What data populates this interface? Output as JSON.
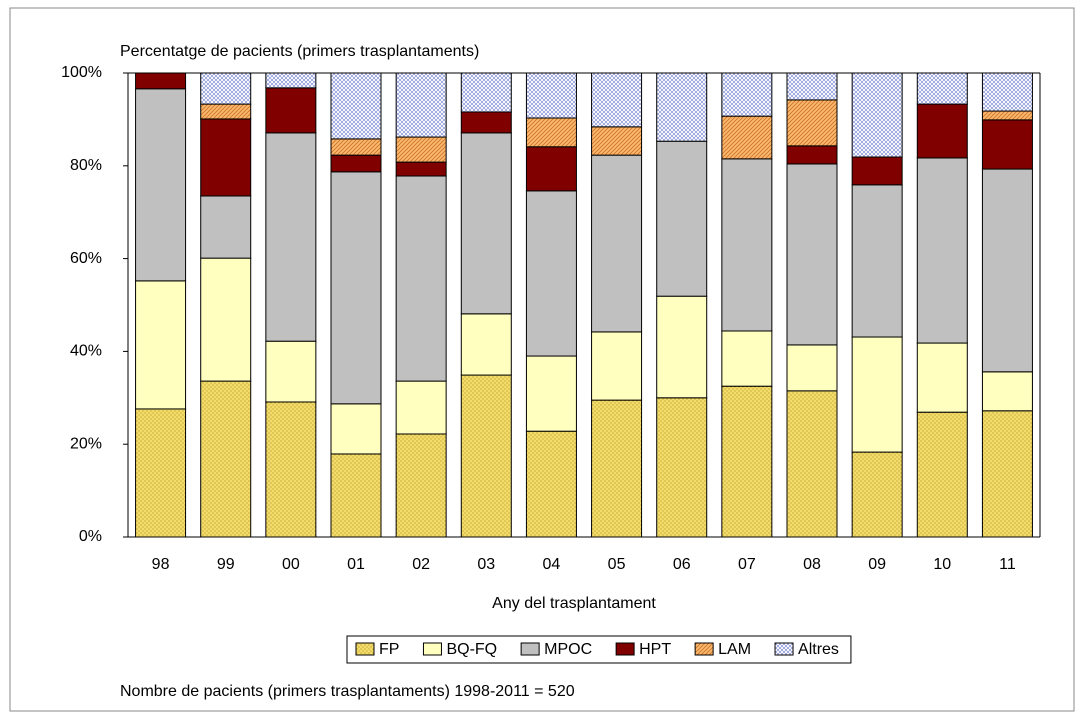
{
  "chart_data": {
    "type": "stacked_bar",
    "title": "Percentatge de pacients (primers trasplantaments)",
    "x_label": "Any del trasplantament",
    "note": "Nombre de pacients (primers trasplantaments) 1998-2011 = 520",
    "categories": [
      "98",
      "99",
      "00",
      "01",
      "02",
      "03",
      "04",
      "05",
      "06",
      "07",
      "08",
      "09",
      "10",
      "11"
    ],
    "series": [
      {
        "name": "FP",
        "color": "#f2dc6a",
        "values": [
          27.6,
          33.6,
          29.1,
          17.9,
          22.2,
          34.9,
          22.8,
          29.5,
          30.0,
          32.5,
          31.5,
          18.3,
          26.9,
          27.2
        ]
      },
      {
        "name": "BQ-FQ",
        "color": "#ffffc0",
        "values": [
          27.6,
          26.5,
          13.1,
          10.8,
          11.4,
          13.2,
          16.2,
          14.7,
          21.9,
          11.9,
          9.9,
          24.8,
          14.9,
          8.4
        ]
      },
      {
        "name": "MPOC",
        "color": "#c0c0c0",
        "values": [
          41.4,
          13.4,
          44.9,
          50.0,
          44.2,
          39.0,
          35.6,
          38.1,
          33.4,
          37.1,
          39.0,
          32.8,
          39.9,
          43.7
        ]
      },
      {
        "name": "HPT",
        "color": "#800000",
        "values": [
          3.4,
          16.6,
          9.7,
          3.6,
          3.0,
          4.5,
          9.5,
          0,
          0,
          0,
          3.9,
          6.0,
          11.6,
          10.6
        ]
      },
      {
        "name": "LAM",
        "color": "#f8b870",
        "values": [
          0,
          3.2,
          0,
          3.5,
          5.4,
          0,
          6.2,
          6.1,
          0,
          9.2,
          9.9,
          0,
          0,
          1.9
        ]
      },
      {
        "name": "Altres",
        "color": "#ffffff",
        "values": [
          0,
          6.7,
          3.2,
          14.2,
          13.8,
          8.4,
          9.7,
          11.6,
          14.7,
          9.3,
          5.8,
          18.1,
          6.7,
          8.2
        ]
      }
    ],
    "ylim": [
      0,
      100
    ],
    "yticks": [
      {
        "value": 0,
        "label": "0%"
      },
      {
        "value": 20,
        "label": "20%"
      },
      {
        "value": 40,
        "label": "40%"
      },
      {
        "value": 60,
        "label": "60%"
      },
      {
        "value": 80,
        "label": "80%"
      },
      {
        "value": 100,
        "label": "100%"
      }
    ],
    "legend": "bottom"
  }
}
